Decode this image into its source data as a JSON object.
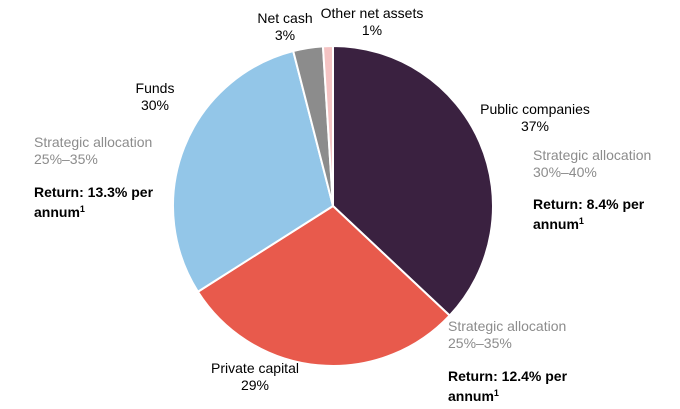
{
  "chart_data": {
    "type": "pie",
    "start_angle_deg": 0,
    "direction": "clockwise",
    "slices": [
      {
        "name": "Public companies",
        "value": 37,
        "label": "37%",
        "color": "#3a2140",
        "allocation": "Strategic allocation\n30%–40%",
        "return_text": "Return: 8.4% per\nannum",
        "footnote": "1"
      },
      {
        "name": "Private capital",
        "value": 29,
        "label": "29%",
        "color": "#e85a4c",
        "allocation": "Strategic allocation\n25%–35%",
        "return_text": "Return: 12.4% per\nannum",
        "footnote": "1"
      },
      {
        "name": "Funds",
        "value": 30,
        "label": "30%",
        "color": "#93c6e8",
        "allocation": "Strategic allocation\n25%–35%",
        "return_text": "Return: 13.3% per\nannum",
        "footnote": "1"
      },
      {
        "name": "Net cash",
        "value": 3,
        "label": "3%",
        "color": "#8c8c8c"
      },
      {
        "name": "Other net assets",
        "value": 1,
        "label": "1%",
        "color": "#f4c3c3"
      }
    ]
  }
}
